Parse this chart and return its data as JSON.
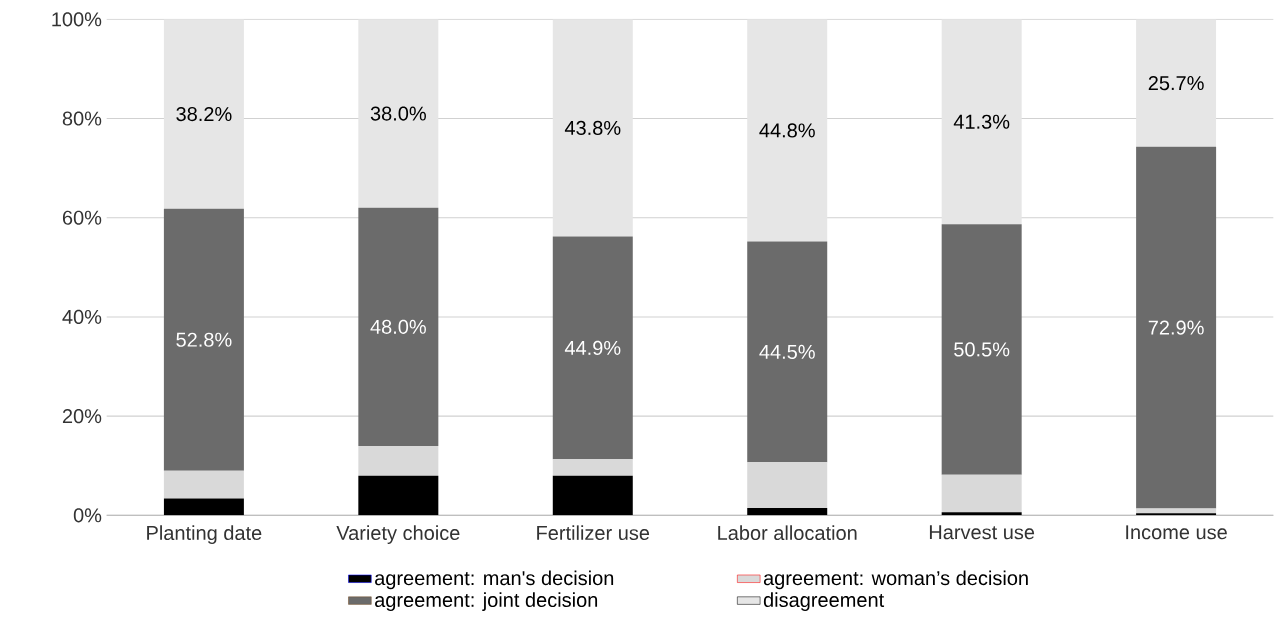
{
  "chart_data": {
    "type": "bar",
    "stacked": true,
    "categories": [
      "Planting date",
      "Variety choice",
      "Fertilizer use",
      "Labor allocation",
      "Harvest use",
      "Income use"
    ],
    "series": [
      {
        "name": "agreement: man's decision",
        "color": "#000000",
        "values": [
          3.4,
          8.0,
          8.0,
          1.5,
          0.6,
          0.4
        ]
      },
      {
        "name": "agreement: woman’s decision",
        "color": "#d9d9d9",
        "values": [
          5.6,
          6.0,
          3.3,
          9.2,
          7.6,
          1.0
        ]
      },
      {
        "name": "agreement: joint decision",
        "color": "#6b6b6b",
        "values": [
          52.8,
          48.0,
          44.9,
          44.5,
          50.5,
          72.9
        ],
        "value_labels": [
          "52.8%",
          "48.0%",
          "44.9%",
          "44.5%",
          "50.5%",
          "72.9%"
        ]
      },
      {
        "name": "disagreement",
        "color": "#e6e6e6",
        "values": [
          38.2,
          38.0,
          43.8,
          44.8,
          41.3,
          25.7
        ],
        "value_labels": [
          "38.2%",
          "38.0%",
          "43.8%",
          "44.8%",
          "41.3%",
          "25.7%"
        ]
      }
    ],
    "ylim": [
      0,
      100
    ],
    "yticks": [
      {
        "value": 0,
        "label": "0%"
      },
      {
        "value": 20,
        "label": "20%"
      },
      {
        "value": 40,
        "label": "40%"
      },
      {
        "value": 60,
        "label": "60%"
      },
      {
        "value": 80,
        "label": "80%"
      },
      {
        "value": 100,
        "label": "100%"
      }
    ],
    "grid": "y",
    "legend": "bottom"
  }
}
